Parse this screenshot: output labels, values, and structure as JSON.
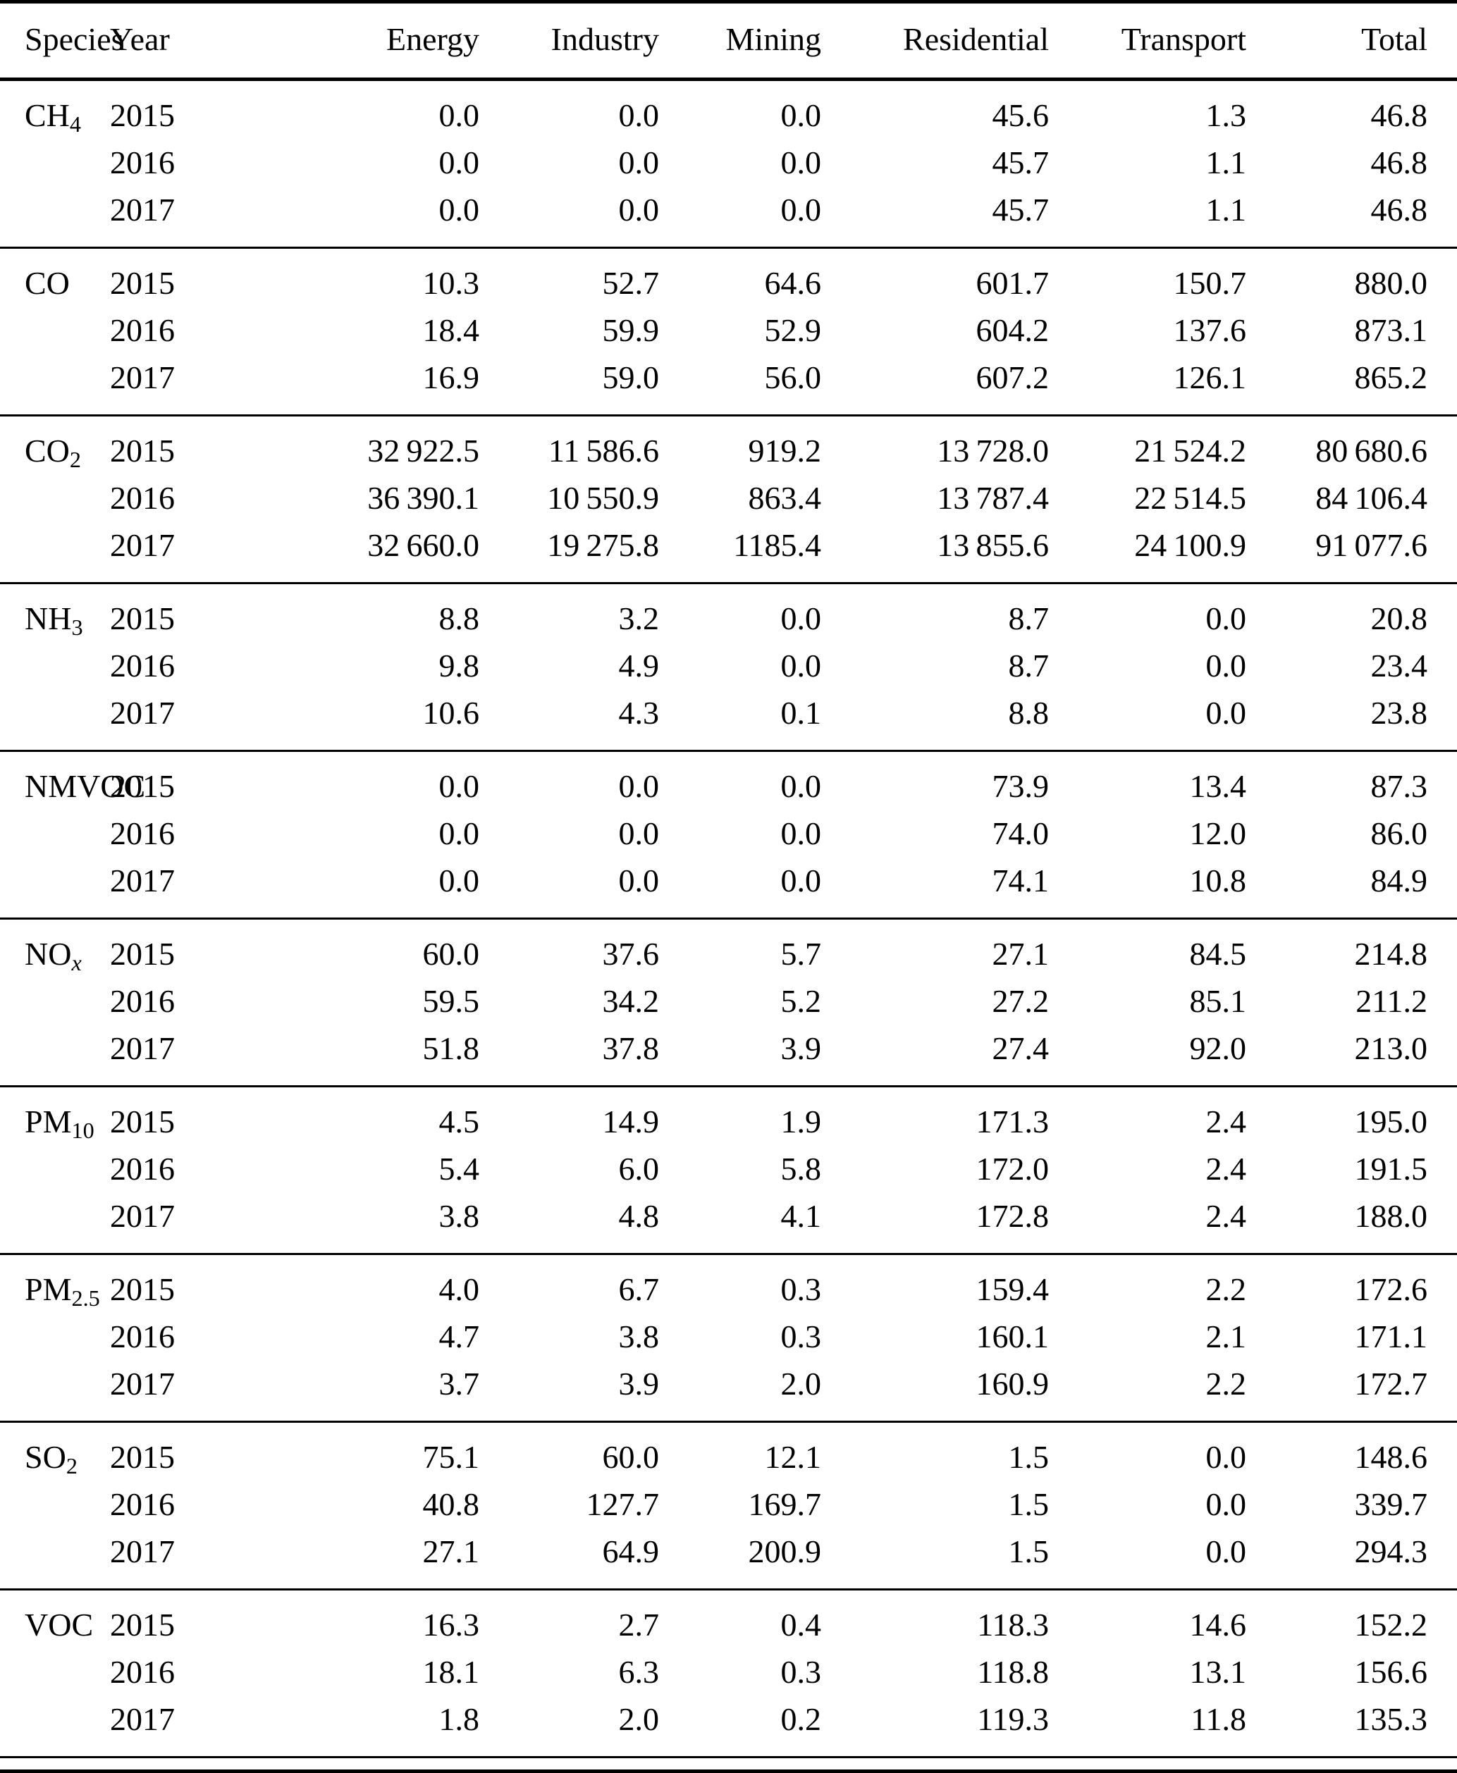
{
  "table": {
    "columns": [
      "Species",
      "Year",
      "Energy",
      "Industry",
      "Mining",
      "Residential",
      "Transport",
      "Total"
    ],
    "groups": [
      {
        "species": {
          "main": "CH",
          "sub": "4",
          "italic_sub": false
        },
        "rows": [
          {
            "year": "2015",
            "values": [
              "0.0",
              "0.0",
              "0.0",
              "45.6",
              "1.3",
              "46.8"
            ]
          },
          {
            "year": "2016",
            "values": [
              "0.0",
              "0.0",
              "0.0",
              "45.7",
              "1.1",
              "46.8"
            ]
          },
          {
            "year": "2017",
            "values": [
              "0.0",
              "0.0",
              "0.0",
              "45.7",
              "1.1",
              "46.8"
            ]
          }
        ]
      },
      {
        "species": {
          "main": "CO",
          "sub": "",
          "italic_sub": false
        },
        "rows": [
          {
            "year": "2015",
            "values": [
              "10.3",
              "52.7",
              "64.6",
              "601.7",
              "150.7",
              "880.0"
            ]
          },
          {
            "year": "2016",
            "values": [
              "18.4",
              "59.9",
              "52.9",
              "604.2",
              "137.6",
              "873.1"
            ]
          },
          {
            "year": "2017",
            "values": [
              "16.9",
              "59.0",
              "56.0",
              "607.2",
              "126.1",
              "865.2"
            ]
          }
        ]
      },
      {
        "species": {
          "main": "CO",
          "sub": "2",
          "italic_sub": false
        },
        "rows": [
          {
            "year": "2015",
            "values": [
              "32 922.5",
              "11 586.6",
              "919.2",
              "13 728.0",
              "21 524.2",
              "80 680.6"
            ]
          },
          {
            "year": "2016",
            "values": [
              "36 390.1",
              "10 550.9",
              "863.4",
              "13 787.4",
              "22 514.5",
              "84 106.4"
            ]
          },
          {
            "year": "2017",
            "values": [
              "32 660.0",
              "19 275.8",
              "1185.4",
              "13 855.6",
              "24 100.9",
              "91 077.6"
            ]
          }
        ]
      },
      {
        "species": {
          "main": "NH",
          "sub": "3",
          "italic_sub": false
        },
        "rows": [
          {
            "year": "2015",
            "values": [
              "8.8",
              "3.2",
              "0.0",
              "8.7",
              "0.0",
              "20.8"
            ]
          },
          {
            "year": "2016",
            "values": [
              "9.8",
              "4.9",
              "0.0",
              "8.7",
              "0.0",
              "23.4"
            ]
          },
          {
            "year": "2017",
            "values": [
              "10.6",
              "4.3",
              "0.1",
              "8.8",
              "0.0",
              "23.8"
            ]
          }
        ]
      },
      {
        "species": {
          "main": "NMVOC",
          "sub": "",
          "italic_sub": false
        },
        "rows": [
          {
            "year": "2015",
            "values": [
              "0.0",
              "0.0",
              "0.0",
              "73.9",
              "13.4",
              "87.3"
            ]
          },
          {
            "year": "2016",
            "values": [
              "0.0",
              "0.0",
              "0.0",
              "74.0",
              "12.0",
              "86.0"
            ]
          },
          {
            "year": "2017",
            "values": [
              "0.0",
              "0.0",
              "0.0",
              "74.1",
              "10.8",
              "84.9"
            ]
          }
        ]
      },
      {
        "species": {
          "main": "NO",
          "sub": "x",
          "italic_sub": true
        },
        "rows": [
          {
            "year": "2015",
            "values": [
              "60.0",
              "37.6",
              "5.7",
              "27.1",
              "84.5",
              "214.8"
            ]
          },
          {
            "year": "2016",
            "values": [
              "59.5",
              "34.2",
              "5.2",
              "27.2",
              "85.1",
              "211.2"
            ]
          },
          {
            "year": "2017",
            "values": [
              "51.8",
              "37.8",
              "3.9",
              "27.4",
              "92.0",
              "213.0"
            ]
          }
        ]
      },
      {
        "species": {
          "main": "PM",
          "sub": "10",
          "italic_sub": false
        },
        "rows": [
          {
            "year": "2015",
            "values": [
              "4.5",
              "14.9",
              "1.9",
              "171.3",
              "2.4",
              "195.0"
            ]
          },
          {
            "year": "2016",
            "values": [
              "5.4",
              "6.0",
              "5.8",
              "172.0",
              "2.4",
              "191.5"
            ]
          },
          {
            "year": "2017",
            "values": [
              "3.8",
              "4.8",
              "4.1",
              "172.8",
              "2.4",
              "188.0"
            ]
          }
        ]
      },
      {
        "species": {
          "main": "PM",
          "sub": "2.5",
          "italic_sub": false
        },
        "rows": [
          {
            "year": "2015",
            "values": [
              "4.0",
              "6.7",
              "0.3",
              "159.4",
              "2.2",
              "172.6"
            ]
          },
          {
            "year": "2016",
            "values": [
              "4.7",
              "3.8",
              "0.3",
              "160.1",
              "2.1",
              "171.1"
            ]
          },
          {
            "year": "2017",
            "values": [
              "3.7",
              "3.9",
              "2.0",
              "160.9",
              "2.2",
              "172.7"
            ]
          }
        ]
      },
      {
        "species": {
          "main": "SO",
          "sub": "2",
          "italic_sub": false
        },
        "rows": [
          {
            "year": "2015",
            "values": [
              "75.1",
              "60.0",
              "12.1",
              "1.5",
              "0.0",
              "148.6"
            ]
          },
          {
            "year": "2016",
            "values": [
              "40.8",
              "127.7",
              "169.7",
              "1.5",
              "0.0",
              "339.7"
            ]
          },
          {
            "year": "2017",
            "values": [
              "27.1",
              "64.9",
              "200.9",
              "1.5",
              "0.0",
              "294.3"
            ]
          }
        ]
      },
      {
        "species": {
          "main": "VOC",
          "sub": "",
          "italic_sub": false
        },
        "rows": [
          {
            "year": "2015",
            "values": [
              "16.3",
              "2.7",
              "0.4",
              "118.3",
              "14.6",
              "152.2"
            ]
          },
          {
            "year": "2016",
            "values": [
              "18.1",
              "6.3",
              "0.3",
              "118.8",
              "13.1",
              "156.6"
            ]
          },
          {
            "year": "2017",
            "values": [
              "1.8",
              "2.0",
              "0.2",
              "119.3",
              "11.8",
              "135.3"
            ]
          }
        ]
      }
    ]
  }
}
